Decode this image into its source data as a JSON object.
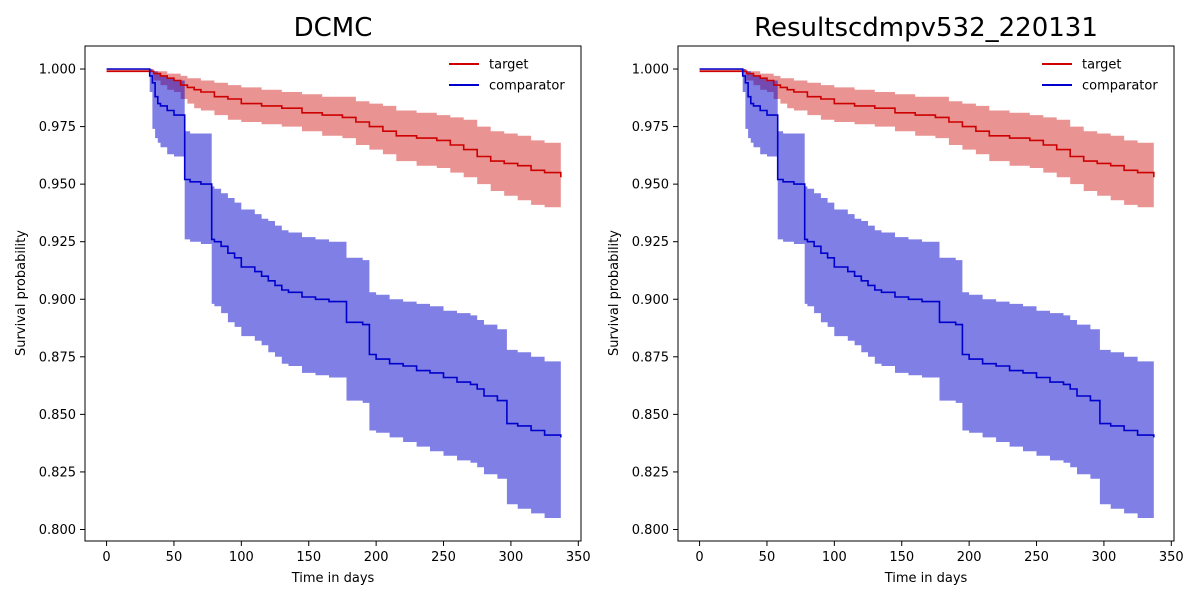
{
  "chart_data": [
    {
      "type": "line",
      "title": "DCMC",
      "xlabel": "Time in days",
      "ylabel": "Survival probability",
      "xlim": [
        -16,
        352
      ],
      "ylim": [
        0.795,
        1.01
      ],
      "xticks": [
        0,
        50,
        100,
        150,
        200,
        250,
        300,
        350
      ],
      "yticks": [
        0.8,
        0.825,
        0.85,
        0.875,
        0.9,
        0.925,
        0.95,
        0.975,
        1.0
      ],
      "xtick_labels": [
        "0",
        "50",
        "100",
        "150",
        "200",
        "250",
        "300",
        "350"
      ],
      "ytick_labels": [
        "0.800",
        "0.825",
        "0.850",
        "0.875",
        "0.900",
        "0.925",
        "0.950",
        "0.975",
        "1.000"
      ],
      "grid": false,
      "legend_position": "top-right",
      "series": [
        {
          "name": "target",
          "color": "#cc0000",
          "band_color": "#d62728",
          "step": true,
          "x": [
            0,
            35,
            40,
            45,
            50,
            55,
            60,
            65,
            70,
            80,
            90,
            100,
            115,
            130,
            145,
            160,
            175,
            185,
            195,
            205,
            215,
            230,
            245,
            255,
            265,
            275,
            285,
            295,
            305,
            315,
            325,
            337
          ],
          "y": [
            0.999,
            0.998,
            0.997,
            0.996,
            0.995,
            0.993,
            0.992,
            0.991,
            0.99,
            0.988,
            0.987,
            0.985,
            0.984,
            0.983,
            0.981,
            0.98,
            0.979,
            0.977,
            0.975,
            0.973,
            0.971,
            0.97,
            0.969,
            0.967,
            0.965,
            0.962,
            0.96,
            0.959,
            0.958,
            0.956,
            0.955,
            0.953
          ],
          "lower": [
            0.999,
            0.995,
            0.993,
            0.991,
            0.99,
            0.987,
            0.985,
            0.983,
            0.982,
            0.98,
            0.978,
            0.977,
            0.976,
            0.975,
            0.973,
            0.971,
            0.97,
            0.967,
            0.965,
            0.963,
            0.96,
            0.958,
            0.957,
            0.955,
            0.953,
            0.95,
            0.947,
            0.945,
            0.943,
            0.941,
            0.94,
            0.939
          ],
          "upper": [
            1.0,
            0.999,
            0.999,
            0.998,
            0.998,
            0.997,
            0.996,
            0.996,
            0.995,
            0.994,
            0.993,
            0.992,
            0.991,
            0.99,
            0.989,
            0.988,
            0.988,
            0.986,
            0.985,
            0.984,
            0.982,
            0.981,
            0.98,
            0.979,
            0.978,
            0.975,
            0.973,
            0.972,
            0.971,
            0.969,
            0.968,
            0.963
          ]
        },
        {
          "name": "comparator",
          "color": "#0000cc",
          "band_color": "#0000cc",
          "step": true,
          "x": [
            0,
            32,
            34,
            36,
            38,
            40,
            45,
            50,
            58,
            62,
            70,
            78,
            80,
            85,
            90,
            95,
            100,
            110,
            115,
            120,
            125,
            130,
            135,
            145,
            155,
            165,
            178,
            190,
            195,
            200,
            210,
            220,
            230,
            240,
            250,
            260,
            270,
            275,
            280,
            290,
            297,
            305,
            315,
            325,
            337
          ],
          "y": [
            1.0,
            0.997,
            0.994,
            0.988,
            0.985,
            0.984,
            0.982,
            0.98,
            0.952,
            0.951,
            0.95,
            0.926,
            0.925,
            0.923,
            0.92,
            0.918,
            0.914,
            0.912,
            0.91,
            0.908,
            0.906,
            0.904,
            0.903,
            0.901,
            0.9,
            0.899,
            0.89,
            0.889,
            0.876,
            0.874,
            0.872,
            0.871,
            0.869,
            0.868,
            0.866,
            0.864,
            0.863,
            0.861,
            0.858,
            0.856,
            0.846,
            0.845,
            0.843,
            0.841,
            0.84
          ],
          "lower": [
            1.0,
            0.99,
            0.974,
            0.97,
            0.968,
            0.966,
            0.963,
            0.962,
            0.926,
            0.925,
            0.924,
            0.898,
            0.897,
            0.894,
            0.89,
            0.888,
            0.884,
            0.882,
            0.88,
            0.877,
            0.875,
            0.872,
            0.871,
            0.868,
            0.867,
            0.866,
            0.856,
            0.855,
            0.843,
            0.842,
            0.84,
            0.838,
            0.836,
            0.834,
            0.832,
            0.83,
            0.829,
            0.827,
            0.824,
            0.822,
            0.811,
            0.809,
            0.807,
            0.805,
            0.804
          ],
          "upper": [
            1.0,
            1.0,
            0.999,
            0.999,
            0.998,
            0.997,
            0.996,
            0.995,
            0.973,
            0.972,
            0.972,
            0.949,
            0.948,
            0.946,
            0.944,
            0.942,
            0.939,
            0.937,
            0.935,
            0.934,
            0.932,
            0.93,
            0.929,
            0.927,
            0.926,
            0.925,
            0.918,
            0.917,
            0.903,
            0.902,
            0.9,
            0.899,
            0.898,
            0.897,
            0.895,
            0.894,
            0.893,
            0.891,
            0.889,
            0.887,
            0.878,
            0.877,
            0.875,
            0.873,
            0.869
          ]
        }
      ]
    },
    {
      "type": "line",
      "title": "Resultscdmpv532_220131",
      "xlabel": "Time in days",
      "ylabel": "Survival probability",
      "xlim": [
        -16,
        352
      ],
      "ylim": [
        0.795,
        1.01
      ],
      "xticks": [
        0,
        50,
        100,
        150,
        200,
        250,
        300,
        350
      ],
      "yticks": [
        0.8,
        0.825,
        0.85,
        0.875,
        0.9,
        0.925,
        0.95,
        0.975,
        1.0
      ],
      "xtick_labels": [
        "0",
        "50",
        "100",
        "150",
        "200",
        "250",
        "300",
        "350"
      ],
      "ytick_labels": [
        "0.800",
        "0.825",
        "0.850",
        "0.875",
        "0.900",
        "0.925",
        "0.950",
        "0.975",
        "1.000"
      ],
      "grid": false,
      "legend_position": "top-right",
      "series": [
        {
          "name": "target",
          "color": "#cc0000",
          "band_color": "#d62728",
          "step": true,
          "x": [
            0,
            35,
            40,
            45,
            50,
            55,
            60,
            65,
            70,
            80,
            90,
            100,
            115,
            130,
            145,
            160,
            175,
            185,
            195,
            205,
            215,
            230,
            245,
            255,
            265,
            275,
            285,
            295,
            305,
            315,
            325,
            337
          ],
          "y": [
            0.999,
            0.998,
            0.997,
            0.996,
            0.995,
            0.993,
            0.992,
            0.991,
            0.99,
            0.988,
            0.987,
            0.985,
            0.984,
            0.983,
            0.981,
            0.98,
            0.979,
            0.977,
            0.975,
            0.973,
            0.971,
            0.97,
            0.969,
            0.967,
            0.965,
            0.962,
            0.96,
            0.959,
            0.958,
            0.956,
            0.955,
            0.953
          ],
          "lower": [
            0.999,
            0.995,
            0.993,
            0.991,
            0.99,
            0.987,
            0.985,
            0.983,
            0.982,
            0.98,
            0.978,
            0.977,
            0.976,
            0.975,
            0.973,
            0.971,
            0.97,
            0.967,
            0.965,
            0.963,
            0.96,
            0.958,
            0.957,
            0.955,
            0.953,
            0.95,
            0.947,
            0.945,
            0.943,
            0.941,
            0.94,
            0.939
          ],
          "upper": [
            1.0,
            0.999,
            0.999,
            0.998,
            0.998,
            0.997,
            0.996,
            0.996,
            0.995,
            0.994,
            0.993,
            0.992,
            0.991,
            0.99,
            0.989,
            0.988,
            0.988,
            0.986,
            0.985,
            0.984,
            0.982,
            0.981,
            0.98,
            0.979,
            0.978,
            0.975,
            0.973,
            0.972,
            0.971,
            0.969,
            0.968,
            0.963
          ]
        },
        {
          "name": "comparator",
          "color": "#0000cc",
          "band_color": "#0000cc",
          "step": true,
          "x": [
            0,
            32,
            34,
            36,
            38,
            40,
            45,
            50,
            58,
            62,
            70,
            78,
            80,
            85,
            90,
            95,
            100,
            110,
            115,
            120,
            125,
            130,
            135,
            145,
            155,
            165,
            178,
            190,
            195,
            200,
            210,
            220,
            230,
            240,
            250,
            260,
            270,
            275,
            280,
            290,
            297,
            305,
            315,
            325,
            337
          ],
          "y": [
            1.0,
            0.997,
            0.994,
            0.988,
            0.985,
            0.984,
            0.982,
            0.98,
            0.952,
            0.951,
            0.95,
            0.926,
            0.925,
            0.923,
            0.92,
            0.918,
            0.914,
            0.912,
            0.91,
            0.908,
            0.906,
            0.904,
            0.903,
            0.901,
            0.9,
            0.899,
            0.89,
            0.889,
            0.876,
            0.874,
            0.872,
            0.871,
            0.869,
            0.868,
            0.866,
            0.864,
            0.863,
            0.861,
            0.858,
            0.856,
            0.846,
            0.845,
            0.843,
            0.841,
            0.84
          ],
          "lower": [
            1.0,
            0.99,
            0.974,
            0.97,
            0.968,
            0.966,
            0.963,
            0.962,
            0.926,
            0.925,
            0.924,
            0.898,
            0.897,
            0.894,
            0.89,
            0.888,
            0.884,
            0.882,
            0.88,
            0.877,
            0.875,
            0.872,
            0.871,
            0.868,
            0.867,
            0.866,
            0.856,
            0.855,
            0.843,
            0.842,
            0.84,
            0.838,
            0.836,
            0.834,
            0.832,
            0.83,
            0.829,
            0.827,
            0.824,
            0.822,
            0.811,
            0.809,
            0.807,
            0.805,
            0.804
          ],
          "upper": [
            1.0,
            1.0,
            0.999,
            0.999,
            0.998,
            0.997,
            0.996,
            0.995,
            0.973,
            0.972,
            0.972,
            0.949,
            0.948,
            0.946,
            0.944,
            0.942,
            0.939,
            0.937,
            0.935,
            0.934,
            0.932,
            0.93,
            0.929,
            0.927,
            0.926,
            0.925,
            0.918,
            0.917,
            0.903,
            0.902,
            0.9,
            0.899,
            0.898,
            0.897,
            0.895,
            0.894,
            0.893,
            0.891,
            0.889,
            0.887,
            0.878,
            0.877,
            0.875,
            0.873,
            0.869
          ]
        }
      ]
    }
  ]
}
